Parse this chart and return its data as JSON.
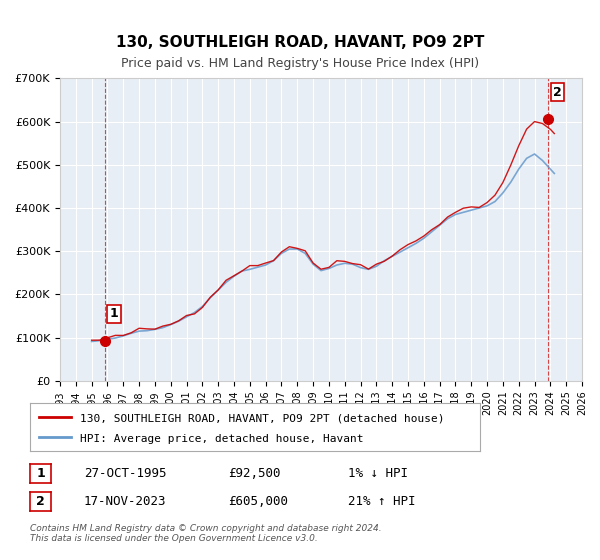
{
  "title": "130, SOUTHLEIGH ROAD, HAVANT, PO9 2PT",
  "subtitle": "Price paid vs. HM Land Registry's House Price Index (HPI)",
  "bg_color": "#e8eef5",
  "plot_bg_color": "#e8eef5",
  "x_min": 1993,
  "x_max": 2026,
  "y_min": 0,
  "y_max": 700000,
  "y_ticks": [
    0,
    100000,
    200000,
    300000,
    400000,
    500000,
    600000,
    700000
  ],
  "y_tick_labels": [
    "£0",
    "£100K",
    "£200K",
    "£300K",
    "£400K",
    "£500K",
    "£600K",
    "£700K"
  ],
  "x_ticks": [
    1993,
    1994,
    1995,
    1996,
    1997,
    1998,
    1999,
    2000,
    2001,
    2002,
    2003,
    2004,
    2005,
    2006,
    2007,
    2008,
    2009,
    2010,
    2011,
    2012,
    2013,
    2014,
    2015,
    2016,
    2017,
    2018,
    2019,
    2020,
    2021,
    2022,
    2023,
    2024,
    2025,
    2026
  ],
  "sale1_x": 1995.82,
  "sale1_y": 92500,
  "sale2_x": 2023.88,
  "sale2_y": 605000,
  "sale_color": "#cc0000",
  "hpi_color": "#6699cc",
  "legend_entries": [
    "130, SOUTHLEIGH ROAD, HAVANT, PO9 2PT (detached house)",
    "HPI: Average price, detached house, Havant"
  ],
  "annotation1_label": "1",
  "annotation2_label": "2",
  "table_rows": [
    [
      "1",
      "27-OCT-1995",
      "£92,500",
      "1% ↓ HPI"
    ],
    [
      "2",
      "17-NOV-2023",
      "£605,000",
      "21% ↑ HPI"
    ]
  ],
  "footer": "Contains HM Land Registry data © Crown copyright and database right 2024.\nThis data is licensed under the Open Government Licence v3.0."
}
